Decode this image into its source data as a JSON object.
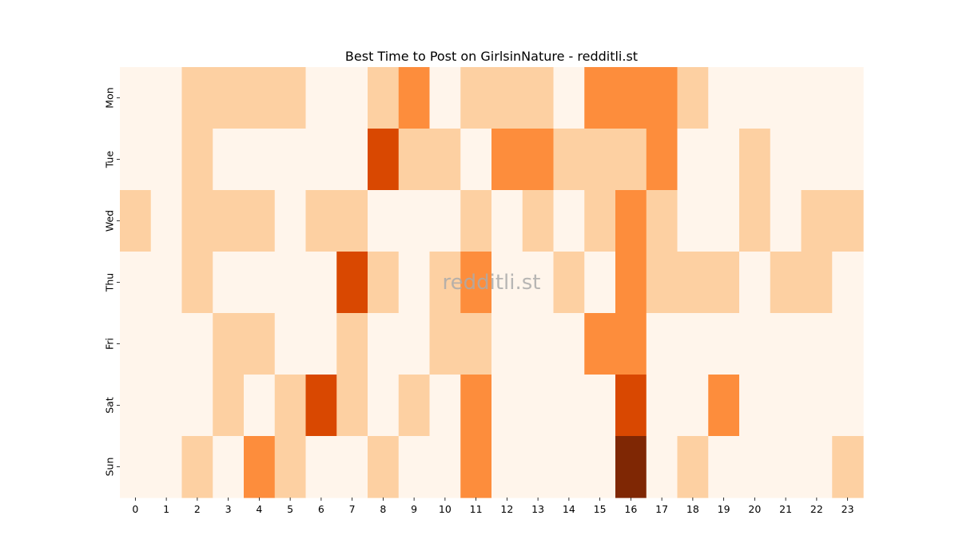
{
  "chart_data": {
    "type": "heatmap",
    "title": "Best Time to Post on GirlsinNature - redditli.st",
    "watermark": "redditli.st",
    "x_labels": [
      "0",
      "1",
      "2",
      "3",
      "4",
      "5",
      "6",
      "7",
      "8",
      "9",
      "10",
      "11",
      "12",
      "13",
      "14",
      "15",
      "16",
      "17",
      "18",
      "19",
      "20",
      "21",
      "22",
      "23"
    ],
    "y_labels": [
      "Mon",
      "Tue",
      "Wed",
      "Thu",
      "Fri",
      "Sat",
      "Sun"
    ],
    "xlabel": "",
    "ylabel": "",
    "colormap": [
      "#fff5eb",
      "#fdd0a2",
      "#fd8d3c",
      "#d94801",
      "#7f2704"
    ],
    "values": [
      [
        0,
        0,
        1,
        1,
        1,
        1,
        0,
        0,
        1,
        2,
        0,
        1,
        1,
        1,
        0,
        2,
        2,
        2,
        1,
        0,
        0,
        0,
        0,
        0
      ],
      [
        0,
        0,
        1,
        0,
        0,
        0,
        0,
        0,
        3,
        1,
        1,
        0,
        2,
        2,
        1,
        1,
        1,
        2,
        0,
        0,
        1,
        0,
        0,
        0
      ],
      [
        1,
        0,
        1,
        1,
        1,
        0,
        1,
        1,
        0,
        0,
        0,
        1,
        0,
        1,
        0,
        1,
        2,
        1,
        0,
        0,
        1,
        0,
        1,
        1
      ],
      [
        0,
        0,
        1,
        0,
        0,
        0,
        0,
        3,
        1,
        0,
        1,
        2,
        0,
        0,
        1,
        0,
        2,
        1,
        1,
        1,
        0,
        1,
        1,
        0
      ],
      [
        0,
        0,
        0,
        1,
        1,
        0,
        0,
        1,
        0,
        0,
        1,
        1,
        0,
        0,
        0,
        2,
        2,
        0,
        0,
        0,
        0,
        0,
        0,
        0
      ],
      [
        0,
        0,
        0,
        1,
        0,
        1,
        3,
        1,
        0,
        1,
        0,
        2,
        0,
        0,
        0,
        0,
        3,
        0,
        0,
        2,
        0,
        0,
        0,
        0
      ],
      [
        0,
        0,
        1,
        0,
        2,
        1,
        0,
        0,
        1,
        0,
        0,
        2,
        0,
        0,
        0,
        0,
        4,
        0,
        1,
        0,
        0,
        0,
        0,
        1
      ]
    ]
  }
}
